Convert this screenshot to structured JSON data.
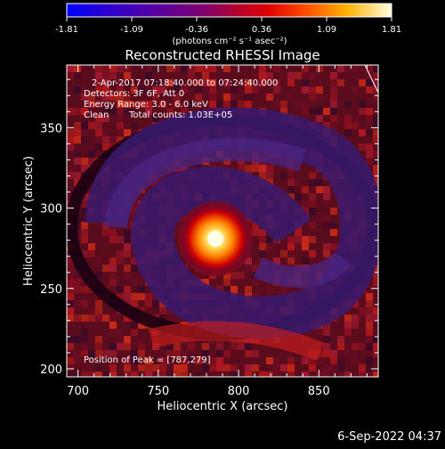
{
  "colorbar": {
    "tick_labels": [
      "-1.81",
      "-1.09",
      "-0.36",
      "0.36",
      "1.09",
      "1.81"
    ],
    "units": "(photons cm⁻² s⁻¹ asec⁻²)",
    "colormap": [
      "#0000ff",
      "#2a00c8",
      "#5a00a0",
      "#800080",
      "#a0005a",
      "#c80000",
      "#ff3000",
      "#ff8c00",
      "#ffd000",
      "#ffffd0"
    ]
  },
  "title": "Reconstructed RHESSI Image",
  "info": {
    "time_range": "2-Apr-2017 07:18:40.000 to 07:24:40.000",
    "detectors": "Detectors: 3F 6F, Att 0",
    "energy": "Energy Range: 3.0 - 6.0 keV",
    "method": "Clean",
    "counts": "Total counts: 1.03E+05"
  },
  "peak_label": "Position of Peak = [787,279]",
  "axes": {
    "xlabel": "Heliocentric X (arcsec)",
    "ylabel": "Heliocentric Y (arcsec)",
    "x_ticks": [
      "700",
      "750",
      "800",
      "850"
    ],
    "y_ticks": [
      "200",
      "250",
      "300",
      "350"
    ],
    "xlim": [
      693,
      887
    ],
    "ylim": [
      195,
      389
    ]
  },
  "peak": {
    "x": 787,
    "y": 279
  },
  "timestamp": "6-Sep-2022 04:37"
}
